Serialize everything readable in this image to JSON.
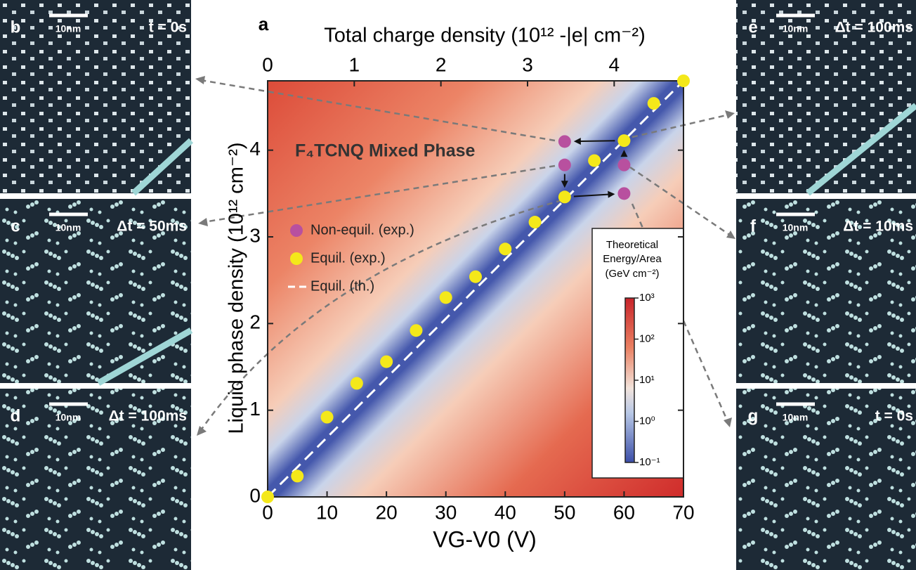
{
  "chart_data": {
    "type": "scatter",
    "panel_label": "a",
    "xlabel": "VG-V0 (V)",
    "ylabel": "Liquid phase density (10¹² cm⁻²)",
    "x2label": "Total charge density (10¹² -|e| cm⁻²)",
    "annotation": "F₄TCNQ Mixed Phase",
    "xlim": [
      0,
      70
    ],
    "xticks": [
      0,
      10,
      20,
      30,
      40,
      50,
      60,
      70
    ],
    "ylim": [
      0,
      4.8
    ],
    "yticks": [
      0,
      1,
      2,
      3,
      4
    ],
    "x2lim": [
      0,
      4.8
    ],
    "x2ticks": [
      0,
      1,
      2,
      3,
      4
    ],
    "series": [
      {
        "name": "Non-equil. (exp.)",
        "color": "#b8509f",
        "type": "scatter",
        "x": [
          50,
          50,
          60,
          60
        ],
        "values": [
          4.1,
          3.83,
          3.83,
          3.5
        ]
      },
      {
        "name": "Equil. (exp.)",
        "color": "#f4e81a",
        "type": "scatter",
        "x": [
          0,
          5,
          10,
          15,
          20,
          25,
          30,
          35,
          40,
          45,
          50,
          55,
          60,
          65,
          70
        ],
        "values": [
          0,
          0.24,
          0.92,
          1.31,
          1.56,
          1.92,
          2.3,
          2.54,
          2.86,
          3.17,
          3.46,
          3.88,
          4.11,
          4.54,
          4.8
        ]
      },
      {
        "name": "Equil. (th.)",
        "color": "#ffffff",
        "type": "line",
        "x": [
          0,
          70
        ],
        "values": [
          0,
          4.8
        ]
      }
    ],
    "colorbar": {
      "title": [
        "Theoretical",
        "Energy/Area",
        "(GeV cm⁻²)"
      ],
      "log": true,
      "lim": [
        0.1,
        1000
      ],
      "ticks": [
        {
          "value": 0.1,
          "label": "10⁻¹"
        },
        {
          "value": 1,
          "label": "10⁰"
        },
        {
          "value": 10,
          "label": "10¹"
        },
        {
          "value": 100,
          "label": "10²"
        },
        {
          "value": 1000,
          "label": "10³"
        }
      ]
    }
  },
  "panels": [
    {
      "label": "b",
      "scale": "10nm",
      "time": "t = 0s"
    },
    {
      "label": "c",
      "scale": "10nm",
      "time": "Δt = 50ms"
    },
    {
      "label": "d",
      "scale": "10nm",
      "time": "Δt = 100ms"
    },
    {
      "label": "e",
      "scale": "10nm",
      "time": "Δt = 100ms"
    },
    {
      "label": "f",
      "scale": "10nm",
      "time": "Δt = 10ms"
    },
    {
      "label": "g",
      "scale": "10nm",
      "time": "t = 0s"
    }
  ]
}
